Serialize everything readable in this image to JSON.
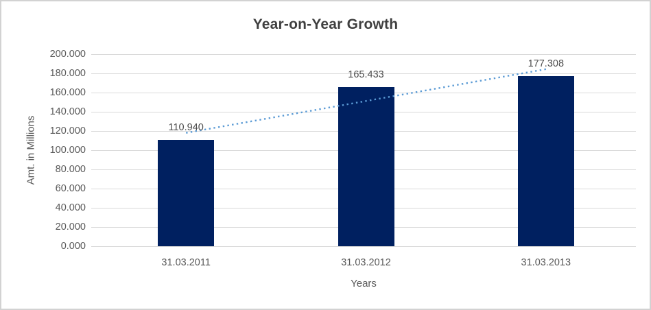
{
  "window": {
    "background": "#ffffff",
    "border_color": "#d2d2d2"
  },
  "chart_data": {
    "type": "bar",
    "title": "Year-on-Year Growth",
    "xlabel": "Years",
    "ylabel": "Amt. in Millions",
    "categories": [
      "31.03.2011",
      "31.03.2012",
      "31.03.2013"
    ],
    "values": [
      110.94,
      165.433,
      177.308
    ],
    "value_labels": [
      "110.940",
      "165.433",
      "177.308"
    ],
    "ylim": [
      0,
      200
    ],
    "ytick_step": 20,
    "ytick_labels": [
      "0.000",
      "20.000",
      "40.000",
      "60.000",
      "80.000",
      "100.000",
      "120.000",
      "140.000",
      "160.000",
      "180.000",
      "200.000"
    ],
    "grid": true,
    "legend": "none",
    "bar_color": "#002060",
    "gridline_color": "#d9d9d9",
    "axis_text_color": "#595959",
    "title_color": "#3f3f3f",
    "trendline": {
      "type": "linear",
      "style": "dotted",
      "color": "#5b9bd5"
    }
  }
}
